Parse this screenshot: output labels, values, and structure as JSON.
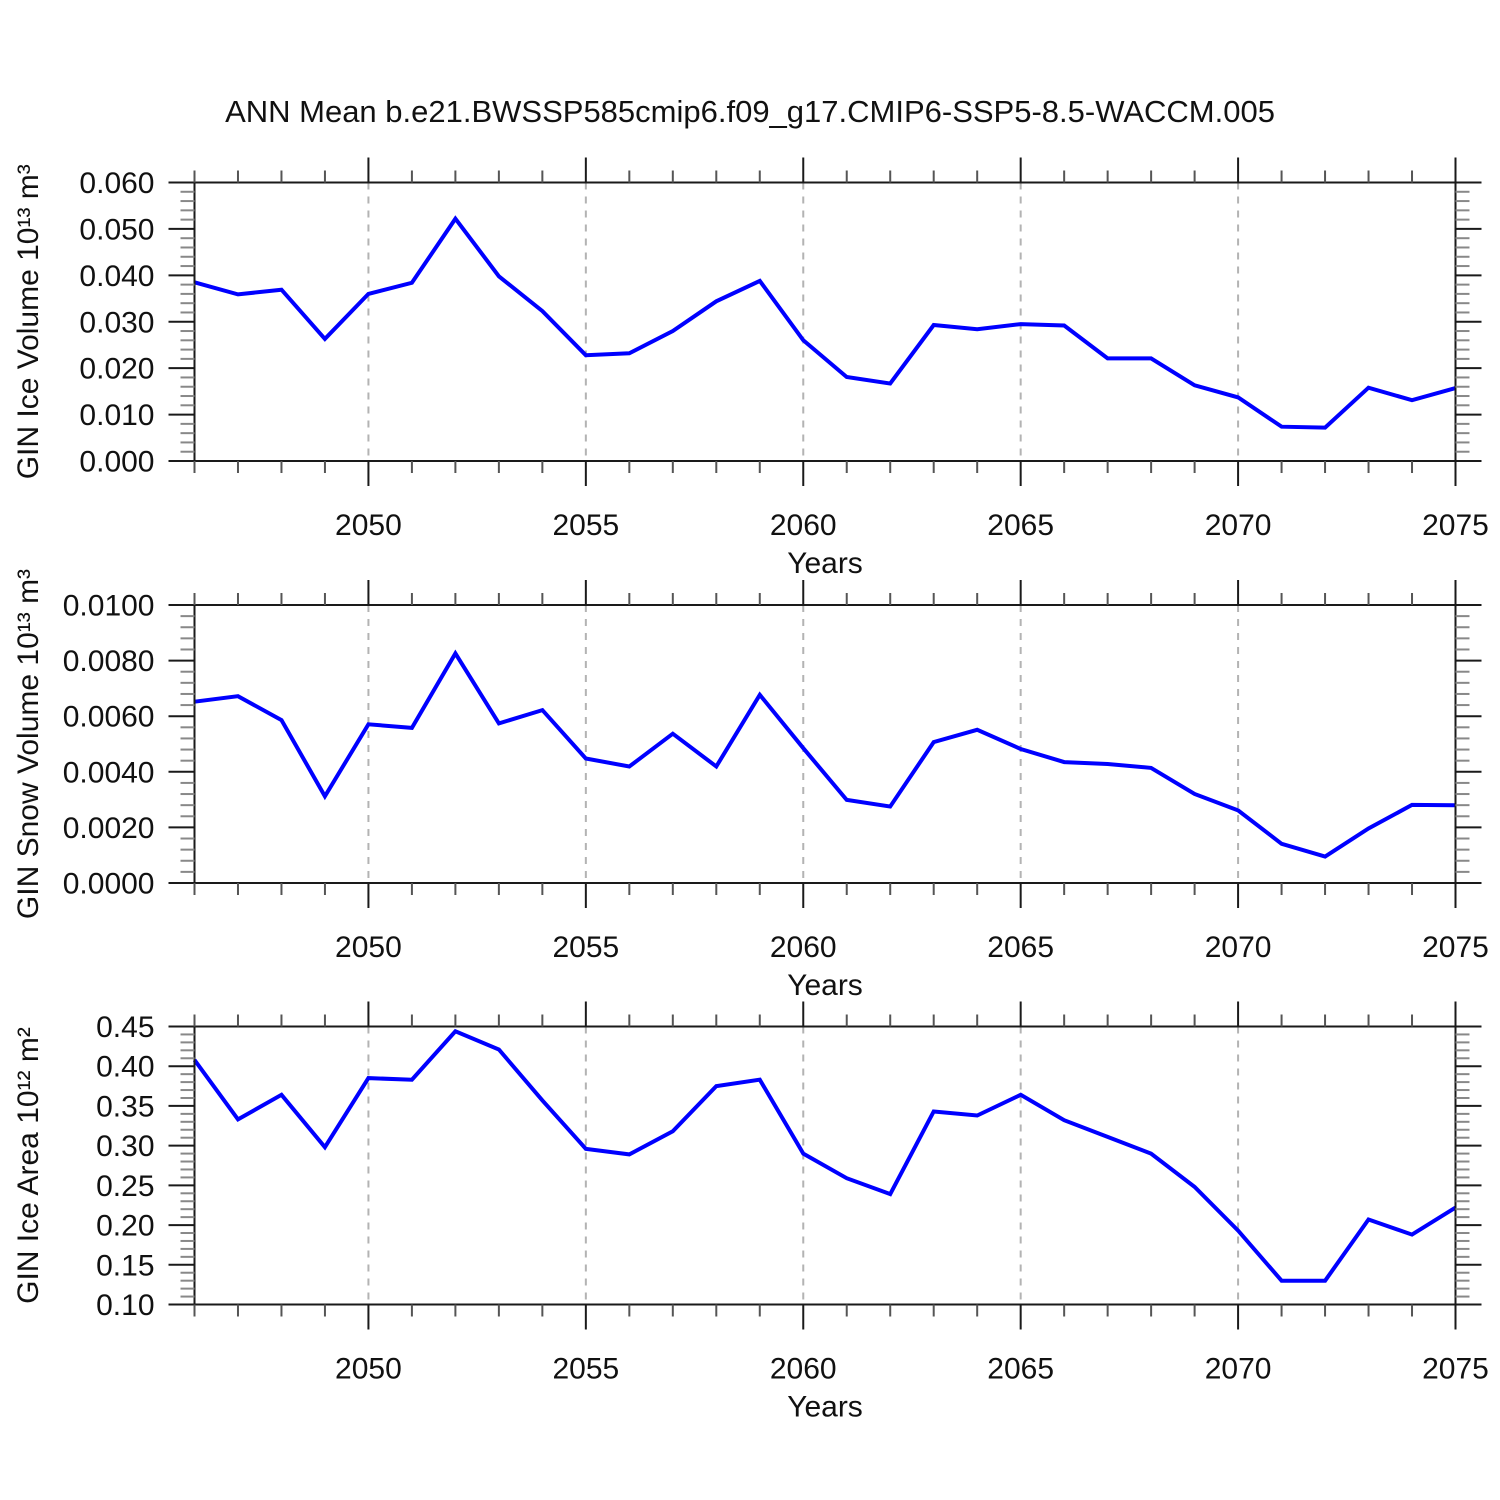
{
  "title": "ANN Mean b.e21.BWSSP585cmip6.f09_g17.CMIP6-SSP5-8.5-WACCM.005",
  "line_color": "#0000ff",
  "axis_color": "#1a1a1a",
  "minor_tick_color": "#888888",
  "gridline_color": "#b3b3b3",
  "chart_data": [
    {
      "type": "line",
      "ylabel": "GIN Ice Volume 10¹³ m³",
      "xlabel": "Years",
      "x": [
        2046,
        2047,
        2048,
        2049,
        2050,
        2051,
        2052,
        2053,
        2054,
        2055,
        2056,
        2057,
        2058,
        2059,
        2060,
        2061,
        2062,
        2063,
        2064,
        2065,
        2066,
        2067,
        2068,
        2069,
        2070,
        2071,
        2072,
        2073,
        2074,
        2075
      ],
      "values": [
        0.0385,
        0.0359,
        0.0369,
        0.0263,
        0.036,
        0.0384,
        0.0522,
        0.0398,
        0.0323,
        0.0228,
        0.0232,
        0.028,
        0.0344,
        0.0388,
        0.026,
        0.0181,
        0.0167,
        0.0293,
        0.0284,
        0.0295,
        0.0292,
        0.0221,
        0.0221,
        0.0163,
        0.0137,
        0.0074,
        0.0072,
        0.0158,
        0.0131,
        0.0157
      ],
      "xlim": [
        2046,
        2075
      ],
      "ylim": [
        0.0,
        0.06
      ],
      "ytick_step": 0.01,
      "ytick_decimals": 3,
      "yminor_per_major": 5,
      "xticks_major": [
        2050,
        2055,
        2060,
        2065,
        2070,
        2075
      ],
      "xtick_minor_step": 1,
      "gridlines_x": [
        2050,
        2055,
        2060,
        2065,
        2070
      ],
      "grid": "vertical-dashed",
      "legend": "none"
    },
    {
      "type": "line",
      "ylabel": "GIN Snow Volume 10¹³ m³",
      "xlabel": "Years",
      "x": [
        2046,
        2047,
        2048,
        2049,
        2050,
        2051,
        2052,
        2053,
        2054,
        2055,
        2056,
        2057,
        2058,
        2059,
        2060,
        2061,
        2062,
        2063,
        2064,
        2065,
        2066,
        2067,
        2068,
        2069,
        2070,
        2071,
        2072,
        2073,
        2074,
        2075
      ],
      "values": [
        0.00652,
        0.00672,
        0.00586,
        0.00312,
        0.00571,
        0.00558,
        0.00826,
        0.00574,
        0.00622,
        0.00448,
        0.00419,
        0.00537,
        0.00419,
        0.00677,
        0.00485,
        0.00299,
        0.00275,
        0.00507,
        0.00551,
        0.00482,
        0.00435,
        0.00428,
        0.00414,
        0.0032,
        0.00261,
        0.00141,
        0.00095,
        0.00196,
        0.00281,
        0.0028
      ],
      "xlim": [
        2046,
        2075
      ],
      "ylim": [
        0.0,
        0.01
      ],
      "ytick_step": 0.002,
      "ytick_decimals": 4,
      "yminor_per_major": 5,
      "xticks_major": [
        2050,
        2055,
        2060,
        2065,
        2070,
        2075
      ],
      "xtick_minor_step": 1,
      "gridlines_x": [
        2050,
        2055,
        2060,
        2065,
        2070
      ],
      "grid": "vertical-dashed",
      "legend": "none"
    },
    {
      "type": "line",
      "ylabel": "GIN Ice Area 10¹² m²",
      "xlabel": "Years",
      "x": [
        2046,
        2047,
        2048,
        2049,
        2050,
        2051,
        2052,
        2053,
        2054,
        2055,
        2056,
        2057,
        2058,
        2059,
        2060,
        2061,
        2062,
        2063,
        2064,
        2065,
        2066,
        2067,
        2068,
        2069,
        2070,
        2071,
        2072,
        2073,
        2074,
        2075
      ],
      "values": [
        0.408,
        0.333,
        0.364,
        0.298,
        0.385,
        0.383,
        0.444,
        0.421,
        0.357,
        0.296,
        0.289,
        0.318,
        0.375,
        0.383,
        0.29,
        0.259,
        0.239,
        0.343,
        0.338,
        0.364,
        0.332,
        0.311,
        0.29,
        0.248,
        0.193,
        0.13,
        0.13,
        0.207,
        0.188,
        0.222
      ],
      "xlim": [
        2046,
        2075
      ],
      "ylim": [
        0.1,
        0.45
      ],
      "ytick_step": 0.05,
      "ytick_decimals": 2,
      "yminor_per_major": 5,
      "xticks_major": [
        2050,
        2055,
        2060,
        2065,
        2070,
        2075
      ],
      "xtick_minor_step": 1,
      "gridlines_x": [
        2050,
        2055,
        2060,
        2065,
        2070
      ],
      "grid": "vertical-dashed",
      "legend": "none"
    }
  ]
}
